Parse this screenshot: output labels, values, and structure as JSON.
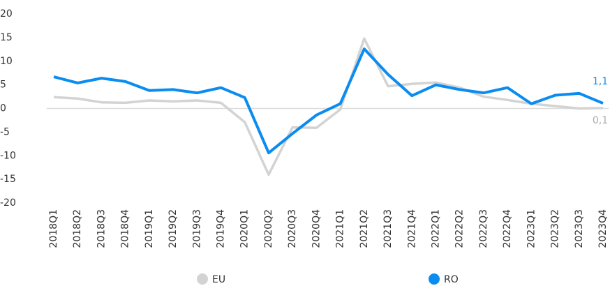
{
  "chart_data": {
    "type": "line",
    "categories": [
      "2018Q1",
      "2018Q2",
      "2018Q3",
      "2018Q4",
      "2019Q1",
      "2019Q2",
      "2019Q3",
      "2019Q4",
      "2020Q1",
      "2020Q2",
      "2020Q3",
      "2020Q4",
      "2021Q1",
      "2021Q2",
      "2021Q3",
      "2021Q4",
      "2022Q1",
      "2022Q2",
      "2022Q3",
      "2022Q4",
      "2023Q1",
      "2023Q2",
      "2023Q3",
      "2023Q4"
    ],
    "series": [
      {
        "name": "EU",
        "color": "#d3d3d3",
        "values": [
          2.4,
          2.1,
          1.3,
          1.2,
          1.7,
          1.5,
          1.7,
          1.2,
          -2.9,
          -14.0,
          -4.0,
          -4.1,
          -0.2,
          14.8,
          4.7,
          5.2,
          5.5,
          4.4,
          2.5,
          1.8,
          1.0,
          0.5,
          0.0,
          0.1
        ],
        "value_labels": [
          null,
          null,
          null,
          null,
          null,
          null,
          null,
          null,
          null,
          null,
          null,
          null,
          null,
          null,
          null,
          null,
          null,
          null,
          null,
          null,
          null,
          null,
          null,
          "0,1"
        ]
      },
      {
        "name": "RO",
        "color": "#0a8cf0",
        "values": [
          6.7,
          5.4,
          6.4,
          5.7,
          3.8,
          4.0,
          3.3,
          4.4,
          2.3,
          -9.4,
          -5.3,
          -1.4,
          1.0,
          12.6,
          7.2,
          2.7,
          5.0,
          4.0,
          3.3,
          4.4,
          1.0,
          2.8,
          3.2,
          1.1
        ],
        "value_labels": [
          null,
          null,
          null,
          null,
          null,
          null,
          null,
          null,
          null,
          null,
          null,
          null,
          null,
          null,
          null,
          null,
          null,
          null,
          null,
          null,
          null,
          null,
          null,
          "1,1"
        ]
      }
    ],
    "ylim": [
      -20,
      20
    ],
    "yticks": [
      -20,
      -15,
      -10,
      -5,
      0,
      5,
      10,
      15,
      20
    ],
    "zero_line": true
  }
}
